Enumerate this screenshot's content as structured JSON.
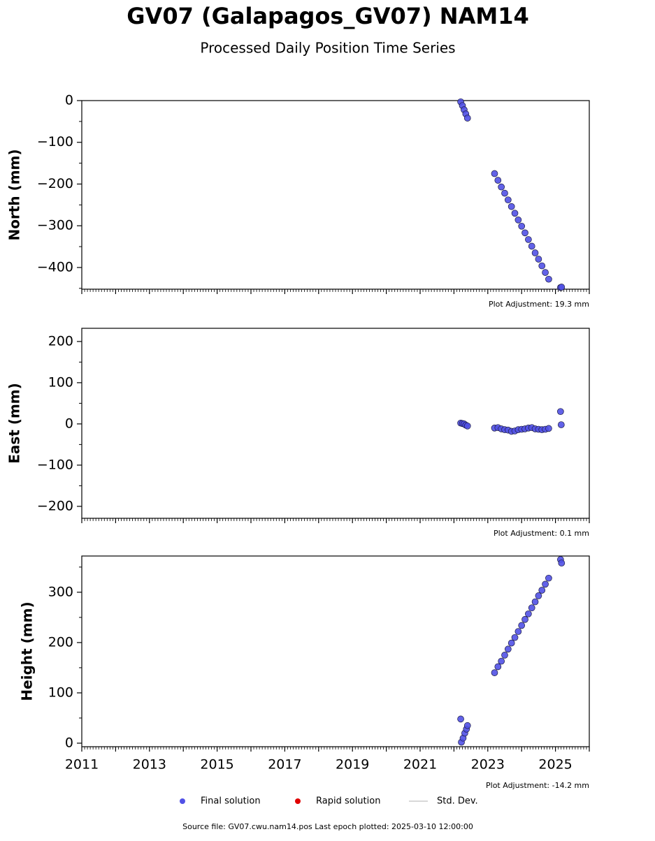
{
  "title": "GV07 (Galapagos_GV07) NAM14",
  "subtitle": "Processed Daily Position Time Series",
  "chart_data": [
    {
      "type": "scatter",
      "ylabel": "North (mm)",
      "annotation": "Plot Adjustment: 19.3 mm",
      "ylim": [
        -452,
        0
      ],
      "yticks": [
        0,
        {
          "value": -100,
          "label": "−100"
        },
        {
          "value": -200,
          "label": "−200"
        },
        {
          "value": -300,
          "label": "−300"
        },
        {
          "value": -400,
          "label": "−400"
        }
      ],
      "series": [
        {
          "name": "Final solution",
          "color": "#5151e6",
          "x": [
            2022.2,
            2022.25,
            2022.3,
            2022.35,
            2022.4,
            2023.2,
            2023.3,
            2023.4,
            2023.5,
            2023.6,
            2023.7,
            2023.8,
            2023.9,
            2024.0,
            2024.1,
            2024.2,
            2024.3,
            2024.4,
            2024.5,
            2024.6,
            2024.7,
            2024.8,
            2025.15,
            2025.18
          ],
          "values": [
            -3,
            -12,
            -22,
            -32,
            -42,
            -175,
            -191,
            -207,
            -222,
            -238,
            -254,
            -270,
            -286,
            -301,
            -317,
            -333,
            -349,
            -365,
            -380,
            -396,
            -412,
            -428,
            -448,
            -447
          ]
        }
      ]
    },
    {
      "type": "scatter",
      "ylabel": "East (mm)",
      "annotation": "Plot Adjustment: 0.1 mm",
      "ylim": [
        -229,
        232
      ],
      "yticks": [
        {
          "value": -200,
          "label": "−200"
        },
        {
          "value": -100,
          "label": "−100"
        },
        0,
        100,
        200
      ],
      "series": [
        {
          "name": "Final solution",
          "color": "#5151e6",
          "x": [
            2022.2,
            2022.25,
            2022.3,
            2022.35,
            2022.4,
            2023.2,
            2023.3,
            2023.4,
            2023.5,
            2023.6,
            2023.7,
            2023.8,
            2023.9,
            2024.0,
            2024.1,
            2024.2,
            2024.3,
            2024.4,
            2024.5,
            2024.6,
            2024.7,
            2024.8,
            2025.15,
            2025.17
          ],
          "values": [
            2,
            1,
            0,
            -3,
            -5,
            -10,
            -9,
            -12,
            -14,
            -15,
            -18,
            -17,
            -14,
            -13,
            -12,
            -10,
            -9,
            -12,
            -13,
            -14,
            -13,
            -11,
            30,
            -2
          ]
        }
      ]
    },
    {
      "type": "scatter",
      "ylabel": "Height (mm)",
      "annotation": "Plot Adjustment: -14.2 mm",
      "ylim": [
        -7,
        372
      ],
      "yticks": [
        0,
        100,
        200,
        300
      ],
      "xlim": [
        2011,
        2026
      ],
      "xticks": [
        2011,
        2013,
        2015,
        2017,
        2019,
        2021,
        2023,
        2025
      ],
      "series": [
        {
          "name": "Final solution",
          "color": "#5151e6",
          "x": [
            2022.2,
            2022.22,
            2022.27,
            2022.32,
            2022.37,
            2022.4,
            2023.2,
            2023.3,
            2023.4,
            2023.5,
            2023.6,
            2023.7,
            2023.8,
            2023.9,
            2024.0,
            2024.1,
            2024.2,
            2024.3,
            2024.4,
            2024.5,
            2024.6,
            2024.7,
            2024.8,
            2025.15,
            2025.18
          ],
          "values": [
            48,
            2,
            10,
            20,
            28,
            35,
            140,
            152,
            163,
            175,
            187,
            199,
            210,
            222,
            234,
            246,
            257,
            269,
            281,
            293,
            304,
            316,
            328,
            365,
            358
          ]
        }
      ]
    }
  ],
  "legend": [
    {
      "name": "Final solution",
      "color": "#5151e6"
    },
    {
      "name": "Rapid solution",
      "color": "#e00000"
    },
    {
      "name": "Std. Dev.",
      "color": "#cccccc"
    }
  ],
  "footer": "Source file: GV07.cwu.nam14.pos  Last epoch plotted: 2025-03-10 12:00:00"
}
